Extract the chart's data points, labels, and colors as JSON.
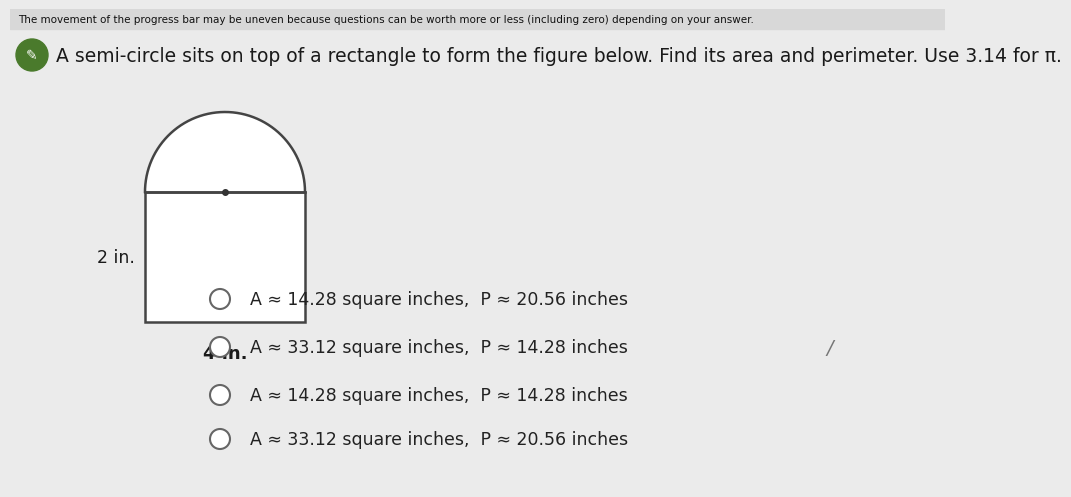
{
  "bg_color": "#ebebeb",
  "top_bar_text": "The movement of the progress bar may be uneven because questions can be worth more or less (including zero) depending on your answer.",
  "top_bar_color": "#d8d8d8",
  "question_text": "A semi-circle sits on top of a rectangle to form the figure below. Find its area and perimeter. Use 3.14 for π.",
  "icon_color": "#4a7a2c",
  "figure_label_width": "4 in.",
  "figure_label_height": "2 in.",
  "options": [
    "A ≈ 14.28 square inches,  P ≈ 20.56 inches",
    "A ≈ 33.12 square inches,  P ≈ 14.28 inches",
    "A ≈ 14.28 square inches,  P ≈ 14.28 inches",
    "A ≈ 33.12 square inches,  P ≈ 20.56 inches"
  ],
  "text_color": "#1a1a1a",
  "option_text_color": "#222222",
  "line_color": "#444444",
  "circle_outline_color": "#666666",
  "dot_color": "#333333",
  "slash_color": "#777777"
}
